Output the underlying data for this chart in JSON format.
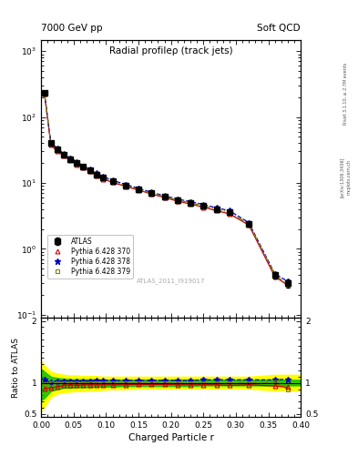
{
  "title_left": "7000 GeV pp",
  "title_right": "Soft QCD",
  "plot_title": "Radial profileρ (track jets)",
  "xlabel": "Charged Particle r",
  "ylabel_ratio": "Ratio to ATLAS",
  "right_label": "Rivet 3.1.10, ≥ 2.7M events",
  "arxiv_label": "[arXiv:1306.3436]",
  "mcplots_label": "mcplots.cern.ch",
  "atlas_label": "ATLAS_2011_I919017",
  "x": [
    0.005,
    0.015,
    0.025,
    0.035,
    0.045,
    0.055,
    0.065,
    0.075,
    0.085,
    0.095,
    0.11,
    0.13,
    0.15,
    0.17,
    0.19,
    0.21,
    0.23,
    0.25,
    0.27,
    0.29,
    0.32,
    0.36,
    0.38
  ],
  "atlas_y": [
    230,
    40,
    32,
    27,
    23,
    20,
    17.5,
    15.5,
    13.5,
    12,
    10.5,
    9.2,
    8.0,
    7.0,
    6.2,
    5.5,
    5.0,
    4.5,
    4.0,
    3.6,
    2.4,
    0.4,
    0.3
  ],
  "atlas_yerr": [
    20,
    3,
    2.5,
    2,
    1.8,
    1.5,
    1.3,
    1.2,
    1.0,
    0.9,
    0.8,
    0.7,
    0.6,
    0.55,
    0.5,
    0.45,
    0.4,
    0.35,
    0.32,
    0.28,
    0.2,
    0.05,
    0.04
  ],
  "pythia370_y": [
    225,
    38,
    30,
    26,
    22,
    19,
    17,
    15,
    13,
    11.5,
    10.2,
    8.9,
    7.8,
    6.8,
    6.0,
    5.3,
    4.8,
    4.3,
    3.8,
    3.4,
    2.3,
    0.38,
    0.28
  ],
  "pythia378_y": [
    232,
    41,
    33,
    28,
    24,
    21,
    18,
    16,
    14,
    12.5,
    11.0,
    9.5,
    8.3,
    7.2,
    6.4,
    5.7,
    5.2,
    4.7,
    4.2,
    3.8,
    2.5,
    0.42,
    0.32
  ],
  "pythia379_y": [
    228,
    40,
    32,
    27,
    23,
    20,
    17.5,
    15.5,
    13.5,
    12,
    10.5,
    9.2,
    8.0,
    7.0,
    6.2,
    5.5,
    5.0,
    4.5,
    4.0,
    3.6,
    2.4,
    0.41,
    0.28
  ],
  "ratio370": [
    0.91,
    0.92,
    0.94,
    0.96,
    0.97,
    0.96,
    0.97,
    0.97,
    0.97,
    0.97,
    0.97,
    0.97,
    0.975,
    0.975,
    0.975,
    0.97,
    0.97,
    0.97,
    0.97,
    0.96,
    0.97,
    0.95,
    0.93
  ],
  "ratio378": [
    1.05,
    1.01,
    1.02,
    1.03,
    1.03,
    1.03,
    1.03,
    1.03,
    1.04,
    1.04,
    1.04,
    1.04,
    1.04,
    1.04,
    1.04,
    1.04,
    1.04,
    1.05,
    1.05,
    1.05,
    1.05,
    1.05,
    1.06
  ],
  "ratio379": [
    0.98,
    1.0,
    1.0,
    1.0,
    1.0,
    1.0,
    1.0,
    1.0,
    1.0,
    1.0,
    1.0,
    1.0,
    1.0,
    1.0,
    1.0,
    1.0,
    1.0,
    1.0,
    1.0,
    1.0,
    1.0,
    1.01,
    0.9
  ],
  "yellow_band_x": [
    0.0,
    0.005,
    0.015,
    0.025,
    0.035,
    0.045,
    0.055,
    0.065,
    0.075,
    0.085,
    0.095,
    0.11,
    0.13,
    0.15,
    0.17,
    0.19,
    0.21,
    0.23,
    0.25,
    0.27,
    0.29,
    0.32,
    0.36,
    0.38,
    0.4
  ],
  "yellow_band_lo": [
    0.55,
    0.62,
    0.78,
    0.83,
    0.85,
    0.86,
    0.87,
    0.87,
    0.88,
    0.88,
    0.89,
    0.9,
    0.9,
    0.91,
    0.91,
    0.91,
    0.91,
    0.91,
    0.91,
    0.91,
    0.91,
    0.91,
    0.88,
    0.88,
    0.88
  ],
  "yellow_band_hi": [
    1.35,
    1.28,
    1.18,
    1.15,
    1.13,
    1.12,
    1.12,
    1.11,
    1.11,
    1.11,
    1.1,
    1.1,
    1.1,
    1.1,
    1.1,
    1.1,
    1.1,
    1.1,
    1.1,
    1.1,
    1.1,
    1.1,
    1.13,
    1.13,
    1.13
  ],
  "green_band_x": [
    0.0,
    0.005,
    0.015,
    0.025,
    0.035,
    0.045,
    0.055,
    0.065,
    0.075,
    0.085,
    0.095,
    0.11,
    0.13,
    0.15,
    0.17,
    0.19,
    0.21,
    0.23,
    0.25,
    0.27,
    0.29,
    0.32,
    0.36,
    0.38,
    0.4
  ],
  "green_band_lo": [
    0.72,
    0.76,
    0.87,
    0.9,
    0.92,
    0.92,
    0.93,
    0.93,
    0.93,
    0.94,
    0.94,
    0.94,
    0.95,
    0.95,
    0.95,
    0.95,
    0.95,
    0.95,
    0.96,
    0.96,
    0.96,
    0.96,
    0.96,
    0.96,
    0.96
  ],
  "green_band_hi": [
    1.22,
    1.18,
    1.1,
    1.08,
    1.07,
    1.06,
    1.06,
    1.06,
    1.06,
    1.06,
    1.05,
    1.05,
    1.05,
    1.05,
    1.05,
    1.05,
    1.05,
    1.05,
    1.05,
    1.05,
    1.05,
    1.05,
    1.05,
    1.05,
    1.05
  ],
  "color_atlas": "#000000",
  "color_370": "#cc0000",
  "color_378": "#0000cc",
  "color_379": "#808000",
  "color_yellow": "#ffff00",
  "color_green": "#00bb00",
  "xlim": [
    0.0,
    0.4
  ],
  "ylim_main": [
    0.09,
    1500
  ],
  "ylim_ratio": [
    0.45,
    2.05
  ],
  "background_color": "#ffffff"
}
